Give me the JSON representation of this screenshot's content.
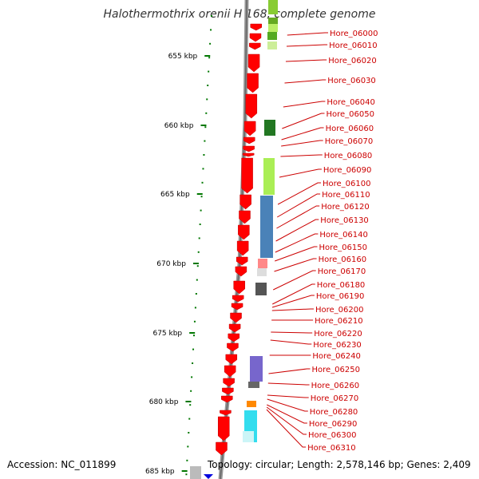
{
  "title_genus": "Halothermothrix orenii",
  "title_rest": " H 168, complete genome",
  "accession": "Accession: NC_011899",
  "topology": "Topology: circular; Length: 2,578,146 bp; Genes: 2,409",
  "scale_labels": [
    "655 kbp",
    "660 kbp",
    "665 kbp",
    "670 kbp",
    "675 kbp",
    "680 kbp",
    "685 kbp"
  ],
  "gene_labels": [
    "Hore_06000",
    "Hore_06010",
    "Hore_06020",
    "Hore_06030",
    "Hore_06040",
    "Hore_06050",
    "Hore_06060",
    "Hore_06070",
    "Hore_06080",
    "Hore_06090",
    "Hore_06100",
    "Hore_06110",
    "Hore_06120",
    "Hore_06130",
    "Hore_06140",
    "Hore_06150",
    "Hore_06160",
    "Hore_06170",
    "Hore_06180",
    "Hore_06190",
    "Hore_06200",
    "Hore_06210",
    "Hore_06220",
    "Hore_06230",
    "Hore_06240",
    "Hore_06250",
    "Hore_06260",
    "Hore_06270",
    "Hore_06280",
    "Hore_06290",
    "Hore_06300",
    "Hore_06310"
  ],
  "colors": {
    "gene": "#ff0000",
    "label": "#cc0000",
    "tick": "#007700",
    "backbone": "#888888"
  }
}
